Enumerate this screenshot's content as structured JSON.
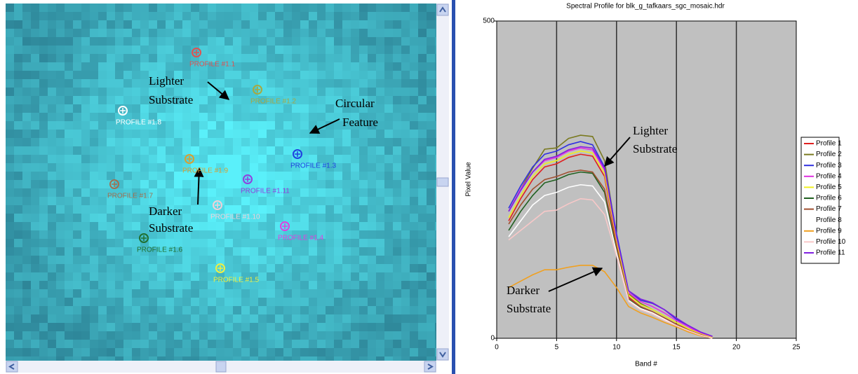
{
  "image_panel": {
    "profiles": [
      {
        "label": "PROFILE #1.1",
        "color": "#e05050"
      },
      {
        "label": "PROFILE #1.2",
        "color": "#a8a840"
      },
      {
        "label": "PROFILE #1.8",
        "color": "#ffffff"
      },
      {
        "label": "PROFILE #1.3",
        "color": "#2040e0"
      },
      {
        "label": "PROFILE #1.9",
        "color": "#d8a030"
      },
      {
        "label": "PROFILE #1.11",
        "color": "#9040e0"
      },
      {
        "label": "PROFILE #1.7",
        "color": "#a07050"
      },
      {
        "label": "PROFILE #1.10",
        "color": "#f0d0d8"
      },
      {
        "label": "PROFILE #1.4",
        "color": "#e040e0"
      },
      {
        "label": "PROFILE #1.6",
        "color": "#207030"
      },
      {
        "label": "PROFILE #1.5",
        "color": "#f0f040"
      }
    ],
    "annotations": [
      {
        "lines": [
          "Lighter",
          "Substrate"
        ]
      },
      {
        "lines": [
          "Circular",
          "Feature"
        ]
      },
      {
        "lines": [
          "Darker",
          "Substrate"
        ]
      }
    ]
  },
  "chart_data": {
    "type": "line",
    "title": "Spectral Profile for blk_g_tafkaars_sgc_mosaic.hdr",
    "x_label": "Band #",
    "y_label": "Pixel Value",
    "x": [
      1,
      2,
      3,
      4,
      5,
      6,
      7,
      8,
      9,
      10,
      11,
      12,
      13,
      14,
      15,
      16,
      17,
      18
    ],
    "xlim": [
      0,
      25
    ],
    "ylim": [
      0,
      500
    ],
    "xticks": [
      0,
      5,
      10,
      15,
      20,
      25
    ],
    "yticks": [
      0,
      500
    ],
    "grid": true,
    "legend": "right",
    "series": [
      {
        "name": "Profile 1",
        "color": "#e02020",
        "values": [
          185,
          220,
          250,
          270,
          275,
          285,
          290,
          287,
          255,
          150,
          65,
          50,
          40,
          32,
          22,
          14,
          6,
          0
        ]
      },
      {
        "name": "Profile 2",
        "color": "#7a7a20",
        "values": [
          200,
          235,
          268,
          298,
          300,
          315,
          320,
          318,
          280,
          160,
          70,
          55,
          45,
          35,
          25,
          15,
          8,
          2
        ]
      },
      {
        "name": "Profile 3",
        "color": "#3030e0",
        "values": [
          205,
          240,
          270,
          290,
          295,
          305,
          310,
          305,
          270,
          165,
          75,
          60,
          55,
          45,
          30,
          20,
          10,
          3
        ]
      },
      {
        "name": "Profile 4",
        "color": "#e030e0",
        "values": [
          200,
          235,
          262,
          280,
          285,
          295,
          300,
          297,
          265,
          158,
          72,
          58,
          50,
          40,
          28,
          18,
          8,
          2
        ]
      },
      {
        "name": "Profile 5",
        "color": "#f0f020",
        "values": [
          190,
          225,
          255,
          275,
          280,
          290,
          295,
          292,
          260,
          155,
          68,
          53,
          45,
          35,
          25,
          15,
          7,
          1
        ]
      },
      {
        "name": "Profile 6",
        "color": "#206020",
        "values": [
          170,
          200,
          225,
          245,
          250,
          258,
          262,
          260,
          230,
          140,
          62,
          48,
          40,
          30,
          22,
          12,
          5,
          0
        ]
      },
      {
        "name": "Profile 7",
        "color": "#a05030",
        "values": [
          180,
          210,
          235,
          250,
          255,
          262,
          265,
          262,
          235,
          145,
          63,
          50,
          42,
          32,
          22,
          13,
          6,
          0
        ]
      },
      {
        "name": "Profile 8",
        "color": "#ffffff",
        "values": [
          160,
          185,
          210,
          225,
          230,
          238,
          242,
          240,
          215,
          135,
          60,
          47,
          40,
          30,
          20,
          12,
          5,
          0
        ]
      },
      {
        "name": "Profile 9",
        "color": "#f0a020",
        "values": [
          80,
          90,
          100,
          108,
          108,
          112,
          115,
          115,
          105,
          80,
          50,
          40,
          33,
          25,
          18,
          10,
          4,
          0
        ]
      },
      {
        "name": "Profile 10",
        "color": "#f8c8c8",
        "values": [
          155,
          170,
          185,
          200,
          202,
          212,
          220,
          218,
          195,
          130,
          58,
          45,
          38,
          28,
          20,
          12,
          5,
          0
        ]
      },
      {
        "name": "Profile 11",
        "color": "#8020e0",
        "values": [
          200,
          233,
          262,
          282,
          287,
          297,
          302,
          300,
          268,
          160,
          75,
          62,
          56,
          45,
          32,
          20,
          10,
          3
        ]
      }
    ],
    "annotations": [
      {
        "lines": [
          "Lighter",
          "Substrate"
        ]
      },
      {
        "lines": [
          "Darker",
          "Substrate"
        ]
      }
    ]
  }
}
